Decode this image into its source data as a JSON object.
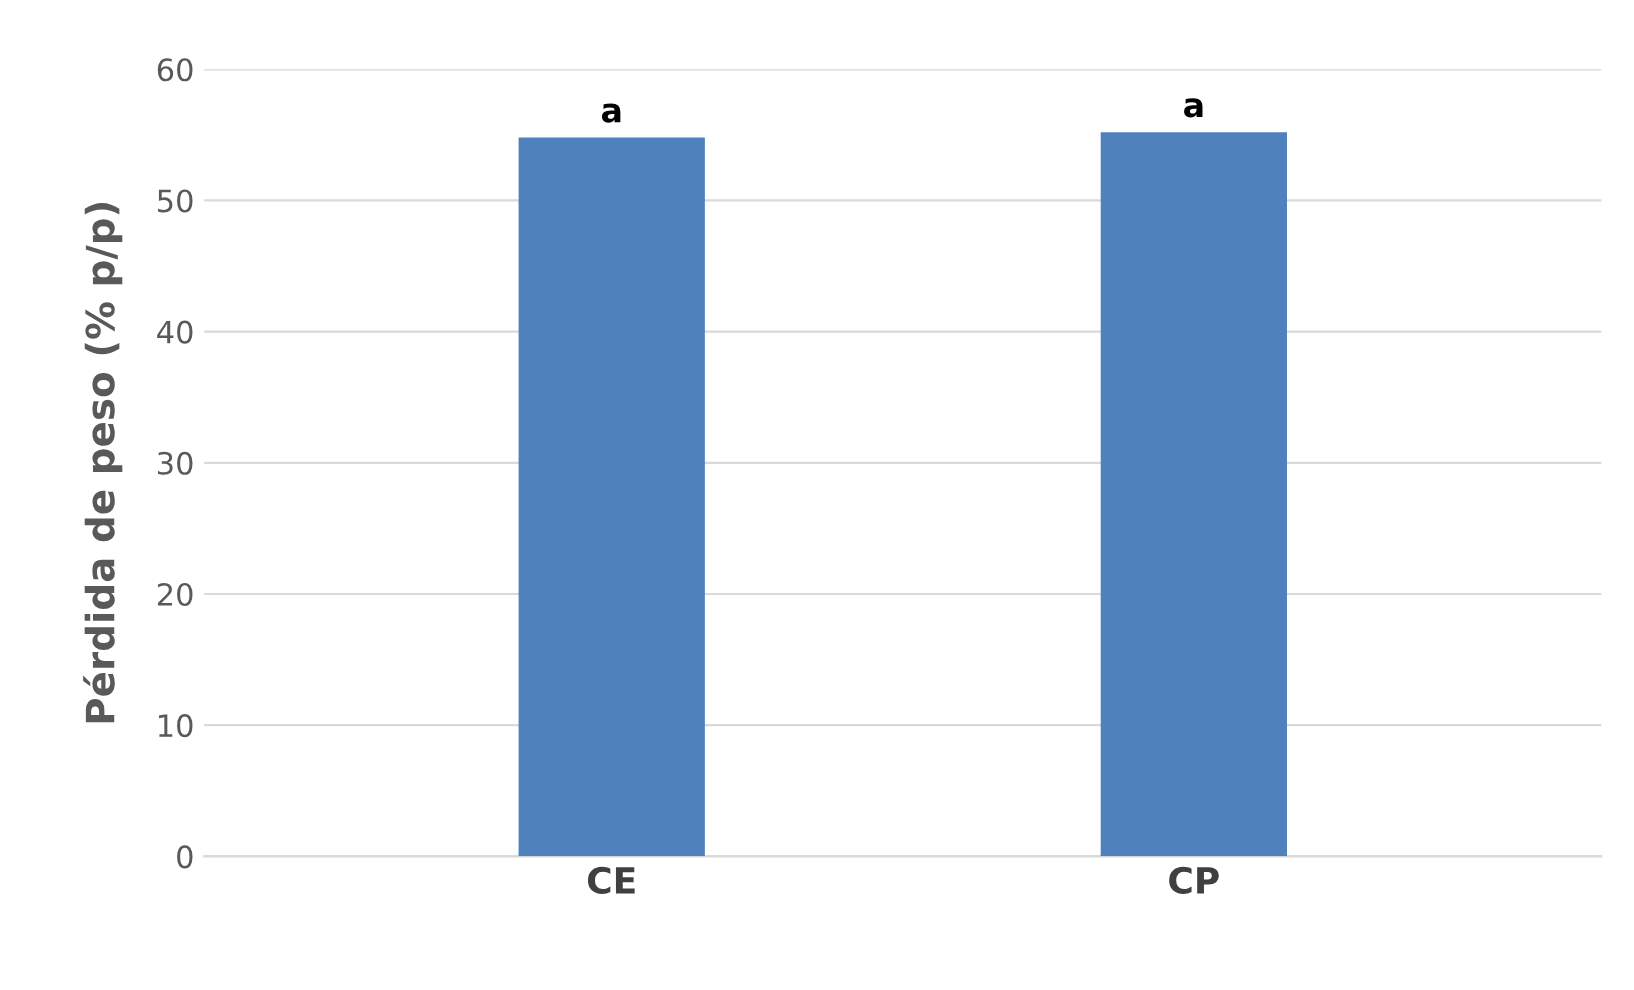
{
  "chart_data": {
    "type": "bar",
    "categories": [
      "CE",
      "CP"
    ],
    "values": [
      54.8,
      55.2
    ],
    "color": "#4f81bd",
    "ylabel": "Pérdida de peso (% p/p)",
    "ylim": [
      0,
      60
    ],
    "yticks": [
      0,
      10,
      20,
      30,
      40,
      50,
      60
    ],
    "grid": "y",
    "annotations": [
      {
        "text": "a",
        "x": "CE",
        "y": 54.8
      },
      {
        "text": "a",
        "x": "CP",
        "y": 55.2
      }
    ]
  }
}
